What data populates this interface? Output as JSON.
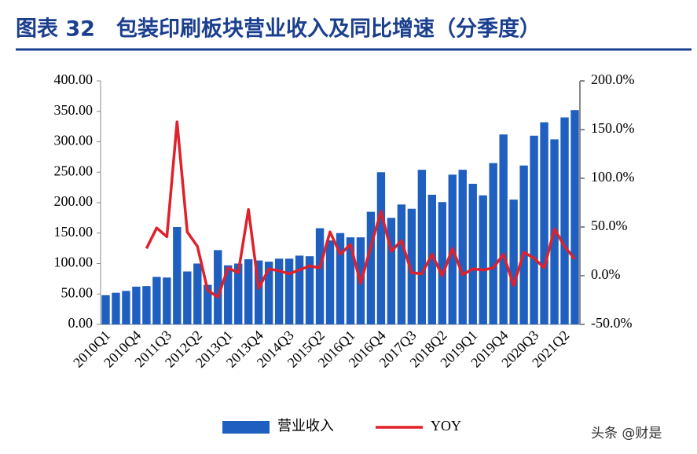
{
  "chart_data": {
    "type": "bar",
    "title": "图表 32　包装印刷板块营业收入及同比增速（分季度）",
    "categories": [
      "2010Q1",
      null,
      null,
      "2010Q4",
      null,
      null,
      "2011Q3",
      null,
      null,
      "2012Q2",
      null,
      null,
      "2013Q1",
      null,
      null,
      "2013Q4",
      null,
      null,
      "2014Q3",
      null,
      null,
      "2015Q2",
      null,
      null,
      "2016Q1",
      null,
      null,
      "2016Q4",
      null,
      null,
      "2017Q3",
      null,
      null,
      "2018Q2",
      null,
      null,
      "2019Q1",
      null,
      null,
      "2019Q4",
      null,
      null,
      "2020Q3",
      null,
      null,
      "2021Q2",
      null
    ],
    "series": [
      {
        "name": "营业收入",
        "type": "bar",
        "color": "#1f5fbf",
        "values": [
          48,
          52,
          55,
          62,
          63,
          78,
          77,
          160,
          87,
          100,
          65,
          122,
          97,
          100,
          107,
          105,
          103,
          108,
          108,
          113,
          112,
          158,
          138,
          150,
          143,
          143,
          185,
          250,
          175,
          197,
          190,
          254,
          213,
          201,
          246,
          254,
          231,
          212,
          265,
          312,
          205,
          261,
          310,
          332,
          304,
          340,
          352
        ]
      },
      {
        "name": "YOY",
        "type": "line",
        "color": "#e0202a",
        "axis": "y2",
        "values": [
          null,
          null,
          null,
          null,
          28,
          49,
          40,
          158,
          45,
          30,
          -15,
          -22,
          8,
          3,
          68,
          -13,
          7,
          5,
          2,
          6,
          10,
          8,
          45,
          22,
          32,
          -8,
          30,
          66,
          25,
          36,
          3,
          2,
          22,
          0,
          28,
          1,
          7,
          6,
          8,
          22,
          -10,
          24,
          18,
          8,
          48,
          30,
          17
        ]
      }
    ],
    "ylim": [
      0,
      400
    ],
    "yticks": [
      {
        "value": 0,
        "label": "0.00"
      },
      {
        "value": 50,
        "label": "50.00"
      },
      {
        "value": 100,
        "label": "100.00"
      },
      {
        "value": 150,
        "label": "150.00"
      },
      {
        "value": 200,
        "label": "200.00"
      },
      {
        "value": 250,
        "label": "250.00"
      },
      {
        "value": 300,
        "label": "300.00"
      },
      {
        "value": 350,
        "label": "350.00"
      },
      {
        "value": 400,
        "label": "400.00"
      }
    ],
    "y2lim": [
      -50,
      200
    ],
    "y2ticks": [
      {
        "value": -50,
        "label": "-50.0%"
      },
      {
        "value": 0,
        "label": "0.0%"
      },
      {
        "value": 50,
        "label": "50.0%"
      },
      {
        "value": 100,
        "label": "100.0%"
      },
      {
        "value": 150,
        "label": "150.0%"
      },
      {
        "value": 200,
        "label": "200.0%"
      }
    ],
    "legend": "bottom",
    "watermark": "头条 @财是"
  }
}
